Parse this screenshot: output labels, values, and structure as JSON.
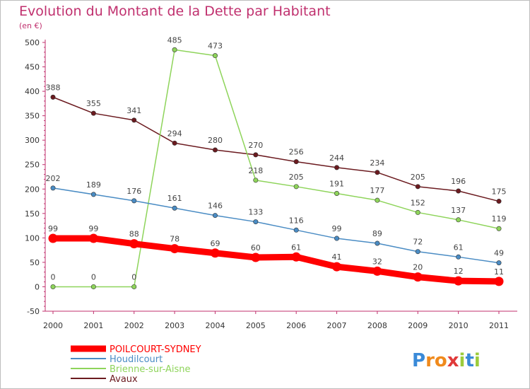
{
  "chart_data": {
    "type": "line",
    "title": "Evolution du Montant de la Dette par Habitant",
    "subtitle": "(en €)",
    "categories": [
      "2000",
      "2001",
      "2002",
      "2003",
      "2004",
      "2005",
      "2006",
      "2007",
      "2008",
      "2009",
      "2010",
      "2011"
    ],
    "ylim": [
      -50,
      500
    ],
    "yticks": [
      -50,
      0,
      50,
      100,
      150,
      200,
      250,
      300,
      350,
      400,
      450,
      500
    ],
    "grid": false,
    "legend_placement": "bottom-left",
    "series": [
      {
        "name": "Avaux",
        "color": "#6b1a1f",
        "values": [
          388,
          355,
          341,
          294,
          280,
          270,
          256,
          244,
          234,
          205,
          196,
          175
        ]
      },
      {
        "name": "Brienne-sur-Aisne",
        "color": "#8ed45a",
        "values": [
          0,
          0,
          0,
          485,
          473,
          218,
          205,
          191,
          177,
          152,
          137,
          119
        ]
      },
      {
        "name": "Houdilcourt",
        "color": "#4a8cc4",
        "values": [
          202,
          189,
          176,
          161,
          146,
          133,
          116,
          99,
          89,
          72,
          61,
          49
        ]
      },
      {
        "name": "POILCOURT-SYDNEY",
        "color": "#ff0000",
        "values": [
          99,
          99,
          88,
          78,
          69,
          60,
          61,
          41,
          32,
          20,
          12,
          11
        ]
      }
    ],
    "legend": [
      "POILCOURT-SYDNEY",
      "Houdilcourt",
      "Brienne-sur-Aisne",
      "Avaux"
    ]
  },
  "logo": {
    "letters": [
      "P",
      "r",
      "o",
      "x",
      "i",
      "t",
      "i"
    ],
    "colors": [
      "#3a8ad8",
      "#f08a1c",
      "#f08a1c",
      "#e03a3a",
      "#9ccc3c",
      "#3a8ad8",
      "#9ccc3c"
    ]
  },
  "colors": {
    "title": "#c0306e",
    "axis": "#c0306e"
  }
}
